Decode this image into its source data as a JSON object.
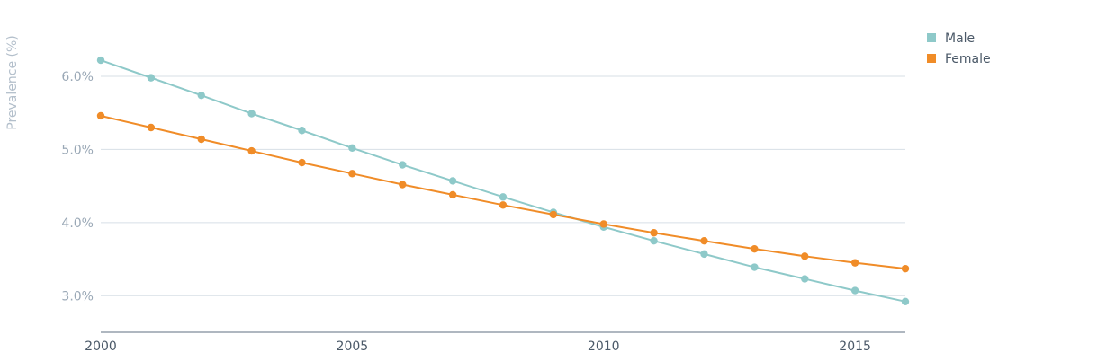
{
  "chart_data": {
    "type": "line",
    "title": "",
    "xlabel": "",
    "ylabel": "Prevalence (%)",
    "x": [
      2000,
      2001,
      2002,
      2003,
      2004,
      2005,
      2006,
      2007,
      2008,
      2009,
      2010,
      2011,
      2012,
      2013,
      2014,
      2015,
      2016
    ],
    "series": [
      {
        "name": "Male",
        "color": "#8ec9c9",
        "values": [
          6.22,
          5.98,
          5.74,
          5.49,
          5.26,
          5.02,
          4.79,
          4.57,
          4.35,
          4.14,
          3.94,
          3.75,
          3.57,
          3.39,
          3.23,
          3.07,
          2.92
        ]
      },
      {
        "name": "Female",
        "color": "#f08c28",
        "values": [
          5.46,
          5.3,
          5.14,
          4.98,
          4.82,
          4.67,
          4.52,
          4.38,
          4.24,
          4.11,
          3.98,
          3.86,
          3.75,
          3.64,
          3.54,
          3.45,
          3.37
        ]
      }
    ],
    "xticks": [
      2000,
      2005,
      2010,
      2015
    ],
    "xtick_labels": [
      "2000",
      "2005",
      "2010",
      "2015"
    ],
    "yticks": [
      3,
      4,
      5,
      6
    ],
    "ytick_labels": [
      "3.0%",
      "4.0%",
      "5.0%",
      "6.0%"
    ],
    "xlim": [
      2000,
      2016
    ],
    "ylim": [
      2.5,
      6.7
    ],
    "grid": true,
    "legend": "top-right"
  }
}
